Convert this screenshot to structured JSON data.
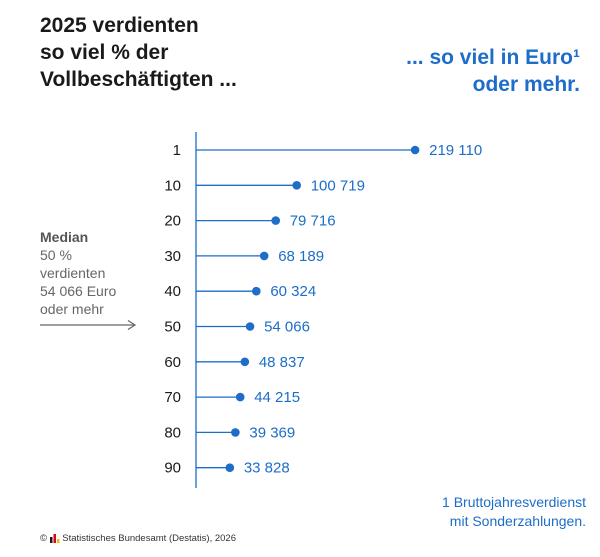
{
  "header": {
    "left_title_lines": [
      "2025 verdienten",
      "so viel % der",
      "Vollbeschäftigten ..."
    ],
    "right_title_lines": [
      "... so viel in Euro¹",
      "oder mehr."
    ]
  },
  "median_note": {
    "title": "Median",
    "lines": [
      "50 %",
      "verdienten",
      "54 066 Euro",
      "oder mehr"
    ]
  },
  "footnote_lines": [
    "1 Bruttojahresverdienst",
    "mit Sonderzahlungen."
  ],
  "source": "Statistisches Bundesamt (Destatis), 2026",
  "colors": {
    "accent": "#1d6dc9",
    "axis": "#1d6dc9",
    "text": "#1a1a1a",
    "muted": "#666666"
  },
  "chart_data": {
    "type": "lollipop",
    "orientation": "horizontal",
    "categories": [
      "1",
      "10",
      "20",
      "30",
      "40",
      "50",
      "60",
      "70",
      "80",
      "90"
    ],
    "values": [
      219110,
      100719,
      79716,
      68189,
      60324,
      54066,
      48837,
      44215,
      39369,
      33828
    ],
    "value_labels": [
      "219 110",
      "100 719",
      "79 716",
      "68 189",
      "60 324",
      "54 066",
      "48 837",
      "44 215",
      "39 369",
      "33 828"
    ],
    "grid": false
  }
}
